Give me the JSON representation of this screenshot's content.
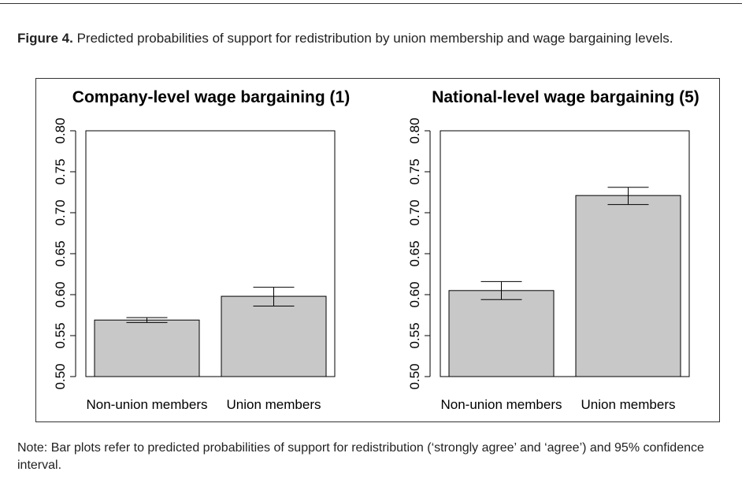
{
  "caption": {
    "label": "Figure 4.",
    "text": "Predicted probabilities of support for redistribution by union membership and wage bargaining levels."
  },
  "note": "Note: Bar plots refer to predicted probabilities of support for redistribution (‘strongly agree’ and ‘agree’) and 95% confidence interval.",
  "colors": {
    "bar": "#c8c8c8",
    "axis": "#000000"
  },
  "chart_data": [
    {
      "type": "bar",
      "title": "Company-level wage bargaining (1)",
      "categories": [
        "Non-union members",
        "Union members"
      ],
      "values": [
        0.569,
        0.598
      ],
      "ci_low": [
        0.566,
        0.586
      ],
      "ci_high": [
        0.572,
        0.609
      ],
      "ylim": [
        0.5,
        0.8
      ],
      "yticks": [
        "0.50",
        "0.55",
        "0.60",
        "0.65",
        "0.70",
        "0.75",
        "0.80"
      ],
      "xlabel": "",
      "ylabel": ""
    },
    {
      "type": "bar",
      "title": "National-level wage bargaining (5)",
      "categories": [
        "Non-union members",
        "Union members"
      ],
      "values": [
        0.605,
        0.721
      ],
      "ci_low": [
        0.594,
        0.71
      ],
      "ci_high": [
        0.616,
        0.731
      ],
      "ylim": [
        0.5,
        0.8
      ],
      "yticks": [
        "0.50",
        "0.55",
        "0.60",
        "0.65",
        "0.70",
        "0.75",
        "0.80"
      ],
      "xlabel": "",
      "ylabel": ""
    }
  ]
}
